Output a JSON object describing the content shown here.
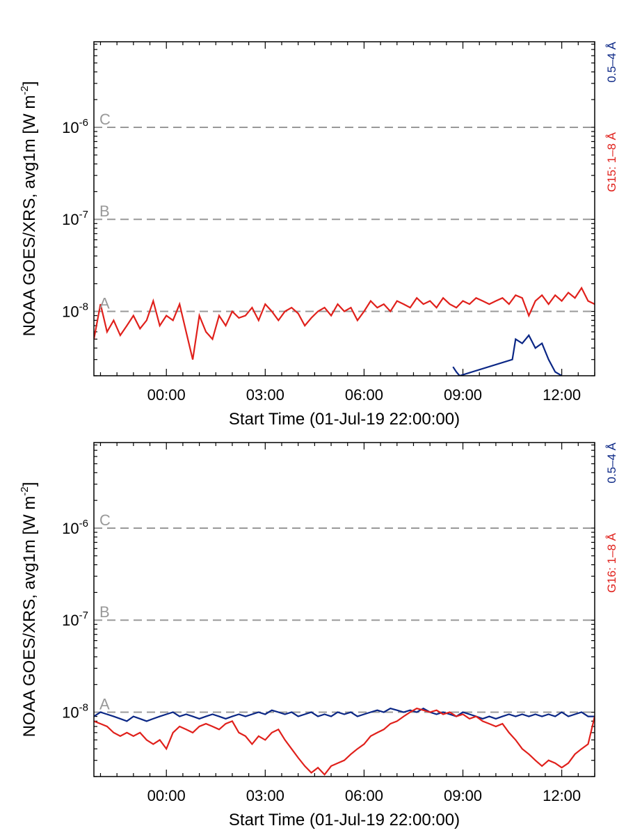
{
  "colors": {
    "long_band": "#e0201b",
    "short_band": "#0a2685",
    "flare_class_line": "#999999",
    "axis": "#000000"
  },
  "chart_data": [
    {
      "type": "line",
      "ylabel": "NOAA GOES/XRS, avg1m [W m",
      "ylabel_exponent": "-2",
      "ylabel_suffix": "]",
      "xlabel": "Start Time (01-Jul-19 22:00:00)",
      "x_ticks": [
        "00:00",
        "03:00",
        "06:00",
        "09:00",
        "12:00"
      ],
      "y_ticks": [
        {
          "base": "10",
          "exp": "-6"
        },
        {
          "base": "10",
          "exp": "-7"
        },
        {
          "base": "10",
          "exp": "-8"
        }
      ],
      "y_scale": "log",
      "ylim": [
        2e-09,
        8.5e-06
      ],
      "xlim_hours": [
        -2.2,
        13
      ],
      "flare_classes": [
        {
          "label": "C",
          "value": 1e-06
        },
        {
          "label": "B",
          "value": 1e-07
        },
        {
          "label": "A",
          "value": 1e-08
        }
      ],
      "legend": [
        {
          "label": "0.5–4 Å",
          "color": "#0a2685"
        },
        {
          "label": "G15: 1–8 Å",
          "color": "#e0201b"
        }
      ],
      "series": [
        {
          "name": "G15: 1–8 Å",
          "color": "#e0201b",
          "x": [
            -2.2,
            -2.0,
            -1.8,
            -1.6,
            -1.4,
            -1.2,
            -1.0,
            -0.8,
            -0.6,
            -0.4,
            -0.2,
            0,
            0.2,
            0.4,
            0.6,
            0.8,
            1.0,
            1.2,
            1.4,
            1.6,
            1.8,
            2.0,
            2.2,
            2.4,
            2.6,
            2.8,
            3.0,
            3.2,
            3.4,
            3.6,
            3.8,
            4.0,
            4.2,
            4.4,
            4.6,
            4.8,
            5.0,
            5.2,
            5.4,
            5.6,
            5.8,
            6.0,
            6.2,
            6.4,
            6.6,
            6.8,
            7.0,
            7.2,
            7.4,
            7.6,
            7.8,
            8.0,
            8.2,
            8.4,
            8.6,
            8.8,
            9.0,
            9.2,
            9.4,
            9.6,
            9.8,
            10.0,
            10.2,
            10.4,
            10.6,
            10.8,
            11.0,
            11.2,
            11.4,
            11.6,
            11.8,
            12.0,
            12.2,
            12.4,
            12.6,
            12.8,
            13.0
          ],
          "y": [
            5e-09,
            1.2e-08,
            6e-09,
            8e-09,
            5.5e-09,
            7e-09,
            9e-09,
            6.5e-09,
            8e-09,
            1.3e-08,
            7e-09,
            9e-09,
            8e-09,
            1.2e-08,
            6e-09,
            3e-09,
            9e-09,
            6e-09,
            5e-09,
            9e-09,
            7e-09,
            1e-08,
            8.5e-09,
            9e-09,
            1.1e-08,
            8e-09,
            1.2e-08,
            1e-08,
            8e-09,
            1e-08,
            1.1e-08,
            9.5e-09,
            7e-09,
            8.5e-09,
            1e-08,
            1.1e-08,
            9e-09,
            1.2e-08,
            1e-08,
            1.1e-08,
            8e-09,
            1e-08,
            1.3e-08,
            1.1e-08,
            1.2e-08,
            1e-08,
            1.3e-08,
            1.2e-08,
            1.1e-08,
            1.4e-08,
            1.2e-08,
            1.3e-08,
            1.1e-08,
            1.4e-08,
            1.2e-08,
            1.1e-08,
            1.3e-08,
            1.2e-08,
            1.4e-08,
            1.3e-08,
            1.2e-08,
            1.3e-08,
            1.4e-08,
            1.2e-08,
            1.5e-08,
            1.4e-08,
            9e-09,
            1.3e-08,
            1.5e-08,
            1.2e-08,
            1.5e-08,
            1.3e-08,
            1.6e-08,
            1.4e-08,
            1.8e-08,
            1.3e-08,
            1.2e-08
          ]
        },
        {
          "name": "0.5–4 Å",
          "color": "#0a2685",
          "x": [
            8.7,
            8.8,
            8.9,
            10.5,
            10.6,
            10.8,
            11.0,
            11.2,
            11.4,
            11.6,
            11.8,
            12.0
          ],
          "y": [
            2.5e-09,
            2.2e-09,
            2e-09,
            3e-09,
            5e-09,
            4.5e-09,
            5.5e-09,
            4e-09,
            4.5e-09,
            3e-09,
            2.2e-09,
            2e-09
          ]
        }
      ]
    },
    {
      "type": "line",
      "ylabel": "NOAA GOES/XRS, avg1m [W m",
      "ylabel_exponent": "-2",
      "ylabel_suffix": "]",
      "xlabel": "Start Time (01-Jul-19 22:00:00)",
      "x_ticks": [
        "00:00",
        "03:00",
        "06:00",
        "09:00",
        "12:00"
      ],
      "y_ticks": [
        {
          "base": "10",
          "exp": "-6"
        },
        {
          "base": "10",
          "exp": "-7"
        },
        {
          "base": "10",
          "exp": "-8"
        }
      ],
      "y_scale": "log",
      "ylim": [
        2e-09,
        8.5e-06
      ],
      "xlim_hours": [
        -2.2,
        13
      ],
      "flare_classes": [
        {
          "label": "C",
          "value": 1e-06
        },
        {
          "label": "B",
          "value": 1e-07
        },
        {
          "label": "A",
          "value": 1e-08
        }
      ],
      "legend": [
        {
          "label": "0.5–4 Å",
          "color": "#0a2685"
        },
        {
          "label": "G16: 1–8 Å",
          "color": "#e0201b"
        }
      ],
      "series": [
        {
          "name": "0.5–4 Å",
          "color": "#0a2685",
          "x": [
            -2.2,
            -2.0,
            -1.8,
            -1.6,
            -1.4,
            -1.2,
            -1.0,
            -0.8,
            -0.6,
            -0.4,
            -0.2,
            0,
            0.2,
            0.4,
            0.6,
            0.8,
            1.0,
            1.2,
            1.4,
            1.6,
            1.8,
            2.0,
            2.2,
            2.4,
            2.6,
            2.8,
            3.0,
            3.2,
            3.4,
            3.6,
            3.8,
            4.0,
            4.2,
            4.4,
            4.6,
            4.8,
            5.0,
            5.2,
            5.4,
            5.6,
            5.8,
            6.0,
            6.2,
            6.4,
            6.6,
            6.8,
            7.0,
            7.2,
            7.4,
            7.6,
            7.8,
            8.0,
            8.2,
            8.4,
            8.6,
            8.8,
            9.0,
            9.2,
            9.4,
            9.6,
            9.8,
            10.0,
            10.2,
            10.4,
            10.6,
            10.8,
            11.0,
            11.2,
            11.4,
            11.6,
            11.8,
            12.0,
            12.2,
            12.4,
            12.6,
            12.8,
            13.0
          ],
          "y": [
            9e-09,
            1e-08,
            9.5e-09,
            9e-09,
            8.5e-09,
            8e-09,
            9e-09,
            8.5e-09,
            8e-09,
            8.5e-09,
            9e-09,
            9.5e-09,
            1e-08,
            9e-09,
            9.5e-09,
            9e-09,
            8.5e-09,
            9e-09,
            9.5e-09,
            9e-09,
            8.5e-09,
            9e-09,
            9.5e-09,
            9e-09,
            9.5e-09,
            1e-08,
            9.5e-09,
            1.05e-08,
            1e-08,
            9.5e-09,
            1e-08,
            9e-09,
            9.5e-09,
            1e-08,
            9e-09,
            9.5e-09,
            9e-09,
            1e-08,
            9.5e-09,
            1e-08,
            9e-09,
            9.5e-09,
            1e-08,
            1.05e-08,
            1e-08,
            1.1e-08,
            1.05e-08,
            1e-08,
            1.05e-08,
            1e-08,
            1.1e-08,
            1e-08,
            9.5e-09,
            1e-08,
            9.5e-09,
            9e-09,
            1e-08,
            9.5e-09,
            9e-09,
            8.5e-09,
            9e-09,
            8.5e-09,
            9e-09,
            9.5e-09,
            9e-09,
            9.5e-09,
            9e-09,
            9.5e-09,
            9e-09,
            9.5e-09,
            9e-09,
            1e-08,
            9e-09,
            9.5e-09,
            1e-08,
            9e-09,
            9e-09
          ]
        },
        {
          "name": "G16: 1–8 Å",
          "color": "#e0201b",
          "x": [
            -2.2,
            -2.0,
            -1.8,
            -1.6,
            -1.4,
            -1.2,
            -1.0,
            -0.8,
            -0.6,
            -0.4,
            -0.2,
            0,
            0.2,
            0.4,
            0.6,
            0.8,
            1.0,
            1.2,
            1.4,
            1.6,
            1.8,
            2.0,
            2.2,
            2.4,
            2.6,
            2.8,
            3.0,
            3.2,
            3.4,
            3.6,
            3.8,
            4.0,
            4.2,
            4.4,
            4.6,
            4.8,
            5.0,
            5.2,
            5.4,
            5.6,
            5.8,
            6.0,
            6.2,
            6.4,
            6.6,
            6.8,
            7.0,
            7.2,
            7.4,
            7.6,
            7.8,
            8.0,
            8.2,
            8.4,
            8.6,
            8.8,
            9.0,
            9.2,
            9.4,
            9.6,
            9.8,
            10.0,
            10.2,
            10.4,
            10.6,
            10.8,
            11.0,
            11.2,
            11.4,
            11.6,
            11.8,
            12.0,
            12.2,
            12.4,
            12.6,
            12.8,
            13.0
          ],
          "y": [
            8e-09,
            7.5e-09,
            7e-09,
            6e-09,
            5.5e-09,
            6e-09,
            5.5e-09,
            6e-09,
            5e-09,
            4.5e-09,
            5e-09,
            4e-09,
            6e-09,
            7e-09,
            6.5e-09,
            6e-09,
            7e-09,
            7.5e-09,
            7e-09,
            6.5e-09,
            7.5e-09,
            8e-09,
            6e-09,
            5.5e-09,
            4.5e-09,
            5.5e-09,
            5e-09,
            6e-09,
            6.5e-09,
            5e-09,
            4e-09,
            3.2e-09,
            2.6e-09,
            2.2e-09,
            2.5e-09,
            2.1e-09,
            2.6e-09,
            2.8e-09,
            3e-09,
            3.5e-09,
            4e-09,
            4.5e-09,
            5.5e-09,
            6e-09,
            6.5e-09,
            7.5e-09,
            8e-09,
            9e-09,
            1e-08,
            1.1e-08,
            1.05e-08,
            1e-08,
            1.05e-08,
            9.5e-09,
            1e-08,
            9e-09,
            9.5e-09,
            8.5e-09,
            9e-09,
            8e-09,
            7.5e-09,
            7e-09,
            7.5e-09,
            6e-09,
            5e-09,
            4e-09,
            3.5e-09,
            3e-09,
            2.6e-09,
            3e-09,
            2.8e-09,
            2.5e-09,
            2.8e-09,
            3.5e-09,
            4e-09,
            4.5e-09,
            9e-09
          ]
        }
      ]
    }
  ]
}
